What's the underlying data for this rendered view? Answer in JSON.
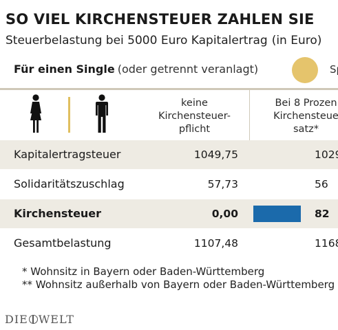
{
  "title": "SO VIEL KIRCHENSTEUER ZAHLEN SIE",
  "subtitle": "Steuerbelastung bei 5000 Euro Kapitalertrag",
  "subtitle_unit": "(in Euro)",
  "section": {
    "label": "Für einen Single",
    "note": "(oder getrennt veranlagt)",
    "legend_label": "Sp",
    "legend_color": "#e5c46c"
  },
  "colors": {
    "bar": "#1b6aab",
    "row_shade": "#eeebe3",
    "gold_divider": "#e0bf5f"
  },
  "icons": [
    "woman-icon",
    "man-icon"
  ],
  "chart_data": {
    "type": "table",
    "columns": [
      {
        "lines": [
          "keine",
          "Kirchensteuer-",
          "pflicht"
        ]
      },
      {
        "lines": [
          "Bei 8 Prozen",
          "Kirchensteue",
          "satz*"
        ]
      }
    ],
    "rows": [
      {
        "label": "Kapitalertragsteuer",
        "v1": "1049,75",
        "v2": "1029",
        "shaded": true,
        "bold": false
      },
      {
        "label": "Solidaritätszuschlag",
        "v1": "57,73",
        "v2": "56",
        "shaded": false,
        "bold": false
      },
      {
        "label": "Kirchensteuer",
        "v1": "0,00",
        "v2": "82",
        "shaded": true,
        "bold": true,
        "bar_value": 82.0
      },
      {
        "label": "Gesamtbelastung",
        "v1": "1107,48",
        "v2": "1168",
        "shaded": false,
        "bold": false
      }
    ]
  },
  "footnotes": [
    "* Wohnsitz in Bayern oder Baden-Württemberg",
    "** Wohnsitz außerhalb von Bayern oder Baden-Württemberg"
  ],
  "logo": {
    "left": "DIE",
    "right": "WELT"
  }
}
